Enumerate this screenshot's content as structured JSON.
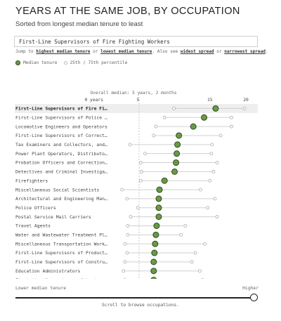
{
  "header": {
    "title": "YEARS AT THE SAME JOB, BY OCCUPATION",
    "subtitle": "Sorted from longest median tenure to least"
  },
  "search": {
    "value": "First-Line Supervisors of Fire Fighting Workers"
  },
  "jump": {
    "prefix": "Jump to",
    "highest": "highest median tenure",
    "or1": "or",
    "lowest": "lowest median tenure",
    "also": ". Also see",
    "widest": "widest spread",
    "or2": "or",
    "narrowest": "narrowest spread",
    "end": "."
  },
  "legend": {
    "median": "Median tenure",
    "range": "25th / 75th percentile"
  },
  "colors": {
    "dot_fill": "#6a9a45",
    "dot_stroke": "#2f4a1e",
    "ring": "#b5b5b5",
    "highlight_row": "#eeeeee"
  },
  "chart_data": {
    "type": "dot-range",
    "overall_median_label": "Overall median: 5 years, 2 months",
    "overall_median": 5.17,
    "xlim": [
      0,
      20
    ],
    "x_ticks": [
      0,
      5,
      15,
      20
    ],
    "x_tick_labels": [
      "0 years",
      "5",
      "15",
      "20"
    ],
    "highlighted_category": "First-Line Supervisors of Fire Fi…",
    "categories": [
      "First-Line Supervisors of Fire Fi…",
      "First-Line Supervisors of Police …",
      "Locomotive Engineers and Operators",
      "First-Line Supervisors of Correct…",
      "Tax Examiners and Collectors, and…",
      "Power Plant Operators, Distributo…",
      "Probation Officers and Correction…",
      "Detectives and Criminal Investiga…",
      "Firefighters",
      "Miscellaneous Social Scientists",
      "Architectural and Engineering Man…",
      "Police Officers",
      "Postal Service Mail Carriers",
      "Travel Agents",
      "Water and Wastewater Treatment Pl…",
      "Miscellaneous Transportation Work…",
      "First-Line Supervisors of Product…",
      "First-Line Supervisors of Constru…",
      "Education Administrators",
      "First-Line Supervisors of Landsca…"
    ],
    "median": [
      15.8,
      14.2,
      12.7,
      10.7,
      10.5,
      10.4,
      10.3,
      10.1,
      8.7,
      8.0,
      7.9,
      7.9,
      7.9,
      7.6,
      7.5,
      7.4,
      7.3,
      7.2,
      7.2,
      7.2
    ],
    "p25": [
      10.0,
      8.7,
      7.5,
      7.2,
      3.9,
      6.0,
      5.4,
      5.5,
      5.4,
      2.8,
      3.5,
      5.0,
      4.0,
      3.6,
      3.6,
      3.2,
      3.5,
      3.2,
      3.0,
      3.2
    ],
    "p75": [
      19.8,
      18.0,
      18.0,
      16.5,
      15.3,
      15.2,
      16.0,
      15.5,
      15.0,
      13.7,
      15.7,
      14.7,
      16.0,
      11.6,
      11.0,
      14.3,
      13.0,
      12.5,
      13.6,
      14.0
    ]
  },
  "footer": {
    "lower": "Lower median tenure",
    "higher": "Higher",
    "hint": "Scroll to browse occupations."
  }
}
